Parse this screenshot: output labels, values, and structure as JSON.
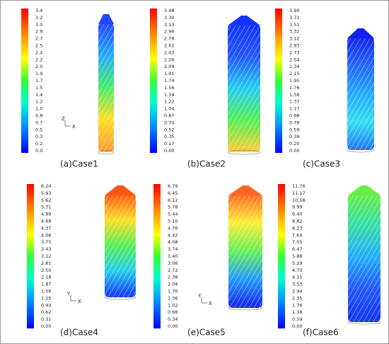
{
  "panels": [
    {
      "caption": "(a)Case1",
      "axes": [
        "Z",
        "X"
      ],
      "colorbar": [
        "3.4",
        "3.2",
        "3.0",
        "2.9",
        "2.7",
        "2.5",
        "2.4",
        "2.2",
        "2.0",
        "1.9",
        "1.7",
        "1.5",
        "1.4",
        "1.2",
        "1.0",
        "0.8",
        "0.7",
        "0.5",
        "0.3",
        "0.2",
        "0.0"
      ]
    },
    {
      "caption": "(b)Case2",
      "colorbar": [
        "3.48",
        "3.30",
        "3.13",
        "2.96",
        "2.78",
        "2.61",
        "2.43",
        "2.26",
        "2.09",
        "1.91",
        "1.74",
        "1.56",
        "1.39",
        "1.22",
        "1.04",
        "0.87",
        "0.70",
        "0.52",
        "0.35",
        "0.17",
        "0.00"
      ]
    },
    {
      "caption": "(c)Case3",
      "colorbar": [
        "3.90",
        "3.71",
        "3.51",
        "3.32",
        "3.12",
        "2.93",
        "2.73",
        "2.54",
        "2.34",
        "2.15",
        "1.95",
        "1.76",
        "1.56",
        "1.37",
        "1.17",
        "0.98",
        "0.78",
        "0.59",
        "0.39",
        "0.20",
        "0.00"
      ]
    },
    {
      "caption": "(d)Case4",
      "axes": [
        "Y",
        "X"
      ],
      "colorbar": [
        "6.24",
        "5.93",
        "5.62",
        "5.31",
        "4.99",
        "4.68",
        "4.37",
        "4.06",
        "3.75",
        "3.43",
        "3.12",
        "2.81",
        "2.50",
        "2.18",
        "1.87",
        "1.56",
        "1.25",
        "0.94",
        "0.62",
        "0.31",
        "0.00"
      ]
    },
    {
      "caption": "(e)Case5",
      "axes": [
        "Y",
        "X"
      ],
      "colorbar": [
        "6.79",
        "6.45",
        "6.12",
        "5.78",
        "5.44",
        "5.10",
        "4.76",
        "4.42",
        "4.08",
        "3.74",
        "3.40",
        "3.06",
        "2.72",
        "2.38",
        "2.04",
        "1.70",
        "1.36",
        "1.02",
        "0.68",
        "0.34",
        "0.00"
      ]
    },
    {
      "caption": "(f)Case6",
      "colorbar": [
        "11.76",
        "11.17",
        "10.58",
        "9.99",
        "9.40",
        "8.82",
        "8.23",
        "7.64",
        "7.05",
        "6.47",
        "5.88",
        "5.29",
        "4.70",
        "4.11",
        "3.53",
        "2.94",
        "2.35",
        "1.76",
        "1.18",
        "0.59",
        "0.00"
      ]
    }
  ]
}
